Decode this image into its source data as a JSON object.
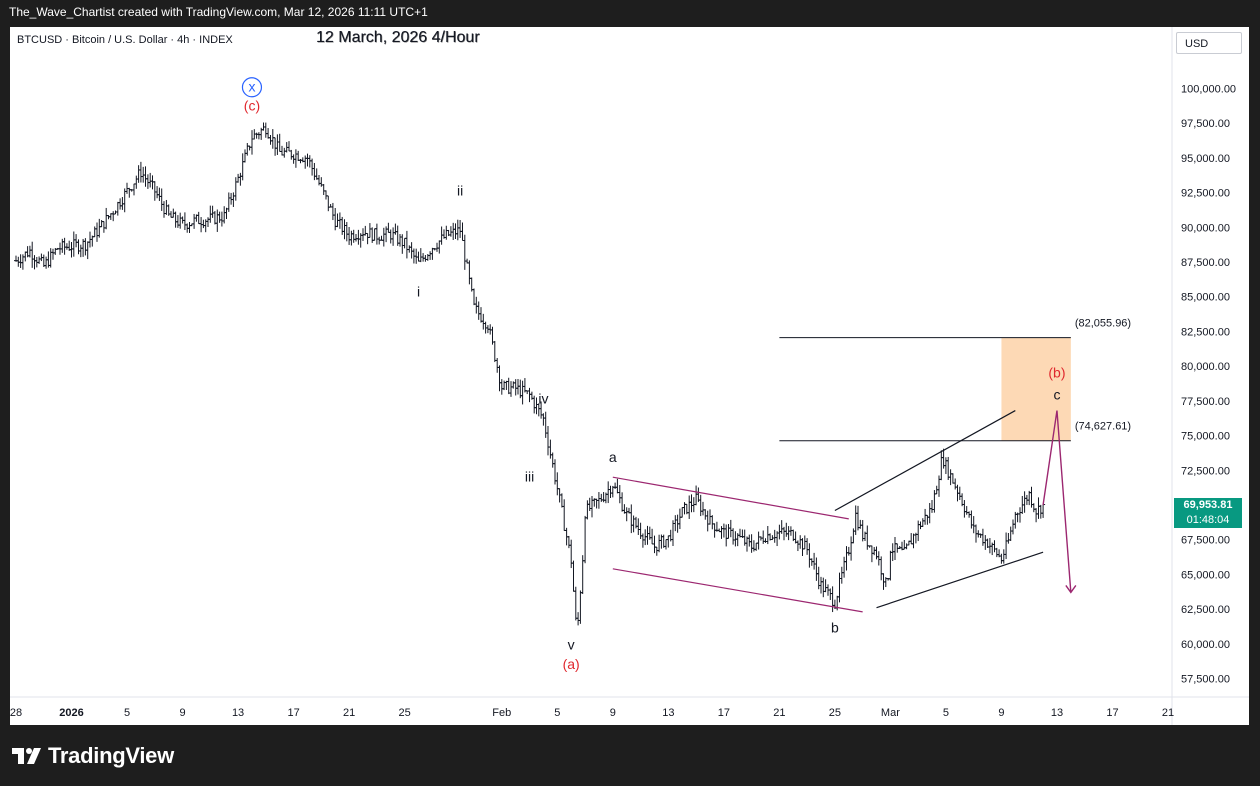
{
  "header": {
    "attribution": "The_Wave_Chartist created with TradingView.com, Mar 12, 2026 11:11 UTC+1"
  },
  "chart_header": {
    "symbol_line": "BTCUSD · Bitcoin / U.S. Dollar · 4h · INDEX",
    "date_title": "12 March, 2026 4/Hour"
  },
  "currency_label": "USD",
  "price_badge": {
    "price": "69,953.81",
    "countdown": "01:48:04",
    "color": "#089981"
  },
  "footer": {
    "brand": "TradingView"
  },
  "chart_data": {
    "type": "candlestick",
    "x_axis": {
      "ticks": [
        {
          "label": "28",
          "date": "2025-12-28"
        },
        {
          "label": "2026",
          "date": "2026-01-01",
          "bold": true
        },
        {
          "label": "5",
          "date": "2026-01-05"
        },
        {
          "label": "9",
          "date": "2026-01-09"
        },
        {
          "label": "13",
          "date": "2026-01-13"
        },
        {
          "label": "17",
          "date": "2026-01-17"
        },
        {
          "label": "21",
          "date": "2026-01-21"
        },
        {
          "label": "25",
          "date": "2026-01-25"
        },
        {
          "label": "Feb",
          "date": "2026-02-01"
        },
        {
          "label": "5",
          "date": "2026-02-05"
        },
        {
          "label": "9",
          "date": "2026-02-09"
        },
        {
          "label": "13",
          "date": "2026-02-13"
        },
        {
          "label": "17",
          "date": "2026-02-17"
        },
        {
          "label": "21",
          "date": "2026-02-21"
        },
        {
          "label": "25",
          "date": "2026-02-25"
        },
        {
          "label": "Mar",
          "date": "2026-03-01"
        },
        {
          "label": "5",
          "date": "2026-03-05"
        },
        {
          "label": "9",
          "date": "2026-03-09"
        },
        {
          "label": "13",
          "date": "2026-03-13"
        },
        {
          "label": "17",
          "date": "2026-03-17"
        },
        {
          "label": "21",
          "date": "2026-03-21"
        }
      ]
    },
    "y_axis": {
      "range": [
        55500,
        104000
      ],
      "ticks": [
        "57,500.00",
        "60,000.00",
        "62,500.00",
        "65,000.00",
        "67,500.00",
        "70,000.00",
        "72,500.00",
        "75,000.00",
        "77,500.00",
        "80,000.00",
        "82,500.00",
        "85,000.00",
        "87,500.00",
        "90,000.00",
        "92,500.00",
        "95,000.00",
        "97,500.00",
        "100,000.00"
      ]
    },
    "price_path": [
      [
        "2025-12-28",
        87600
      ],
      [
        "2025-12-29",
        88300
      ],
      [
        "2025-12-30",
        87200
      ],
      [
        "2025-12-31",
        88500
      ],
      [
        "2026-01-02",
        88800
      ],
      [
        "2026-01-03",
        89900
      ],
      [
        "2026-01-04",
        91200
      ],
      [
        "2026-01-05",
        92600
      ],
      [
        "2026-01-06",
        94000
      ],
      [
        "2026-01-07",
        92600
      ],
      [
        "2026-01-08",
        90800
      ],
      [
        "2026-01-09",
        90200
      ],
      [
        "2026-01-10",
        90500
      ],
      [
        "2026-01-11",
        90600
      ],
      [
        "2026-01-12",
        90800
      ],
      [
        "2026-01-13",
        93500
      ],
      [
        "2026-01-14",
        96500
      ],
      [
        "2026-01-15",
        97200
      ],
      [
        "2026-01-16",
        95400
      ],
      [
        "2026-01-17",
        95300
      ],
      [
        "2026-01-18",
        95000
      ],
      [
        "2026-01-19",
        92800
      ],
      [
        "2026-01-20",
        90500
      ],
      [
        "2026-01-21",
        89400
      ],
      [
        "2026-01-22",
        89700
      ],
      [
        "2026-01-23",
        89400
      ],
      [
        "2026-01-24",
        89500
      ],
      [
        "2026-01-25",
        88800
      ],
      [
        "2026-01-26",
        87400
      ],
      [
        "2026-01-27",
        88600
      ],
      [
        "2026-01-28",
        89400
      ],
      [
        "2026-01-29",
        89800
      ],
      [
        "2026-01-30",
        84200
      ],
      [
        "2026-01-31",
        83000
      ],
      [
        "2026-02-01",
        78500
      ],
      [
        "2026-02-02",
        78400
      ],
      [
        "2026-02-03",
        77900
      ],
      [
        "2026-02-04",
        76200
      ],
      [
        "2026-02-05",
        71200
      ],
      [
        "2026-02-06",
        66000
      ],
      [
        "2026-02-06T10:00",
        60500
      ],
      [
        "2026-02-06T20:00",
        66200
      ],
      [
        "2026-02-07",
        69500
      ],
      [
        "2026-02-08",
        70300
      ],
      [
        "2026-02-09",
        71500
      ],
      [
        "2026-02-10",
        69300
      ],
      [
        "2026-02-11",
        68100
      ],
      [
        "2026-02-12",
        67000
      ],
      [
        "2026-02-13",
        67600
      ],
      [
        "2026-02-14",
        69500
      ],
      [
        "2026-02-15",
        70400
      ],
      [
        "2026-02-16",
        68800
      ],
      [
        "2026-02-17",
        68000
      ],
      [
        "2026-02-18",
        67700
      ],
      [
        "2026-02-19",
        67000
      ],
      [
        "2026-02-20",
        67800
      ],
      [
        "2026-02-21",
        68000
      ],
      [
        "2026-02-22",
        67900
      ],
      [
        "2026-02-23",
        66800
      ],
      [
        "2026-02-24",
        64200
      ],
      [
        "2026-02-25",
        63000
      ],
      [
        "2026-02-26",
        66800
      ],
      [
        "2026-02-26T12:00",
        69300
      ],
      [
        "2026-02-27",
        67800
      ],
      [
        "2026-02-28",
        66500
      ],
      [
        "2026-02-28T18:00",
        64000
      ],
      [
        "2026-03-01",
        66900
      ],
      [
        "2026-03-02",
        66500
      ],
      [
        "2026-03-03",
        68400
      ],
      [
        "2026-03-04",
        69800
      ],
      [
        "2026-03-04T18:00",
        73500
      ],
      [
        "2026-03-05",
        72800
      ],
      [
        "2026-03-06",
        70700
      ],
      [
        "2026-03-07",
        68200
      ],
      [
        "2026-03-08",
        67300
      ],
      [
        "2026-03-09",
        66100
      ],
      [
        "2026-03-09T12:00",
        67400
      ],
      [
        "2026-03-10",
        69300
      ],
      [
        "2026-03-11",
        70800
      ],
      [
        "2026-03-11T12:00",
        69600
      ],
      [
        "2026-03-12",
        69953.81
      ]
    ],
    "channel_lines": [
      {
        "from": [
          "2026-02-09",
          72000
        ],
        "to": [
          "2026-02-26",
          69000
        ],
        "color": "#9c2770"
      },
      {
        "from": [
          "2026-02-09",
          65400
        ],
        "to": [
          "2026-02-27",
          62300
        ],
        "color": "#9c2770"
      },
      {
        "from": [
          "2026-02-25",
          69600
        ],
        "to": [
          "2026-03-10",
          76800
        ],
        "color": "#131722"
      },
      {
        "from": [
          "2026-02-28",
          62600
        ],
        "to": [
          "2026-03-12",
          66600
        ],
        "color": "#131722"
      }
    ],
    "levels": [
      {
        "label": "(82,055.96)",
        "value": 82055.96,
        "from": "2026-02-21",
        "to": "2026-03-14"
      },
      {
        "label": "(74,627.61)",
        "value": 74627.61,
        "from": "2026-02-21",
        "to": "2026-03-14"
      }
    ],
    "target_zone": {
      "from": "2026-03-09",
      "to": "2026-03-14",
      "y_low": 74627.61,
      "y_high": 82055.96,
      "color": "#fdd9b5"
    },
    "projection": {
      "color": "#9c2770",
      "points": [
        [
          "2026-03-12",
          70000
        ],
        [
          "2026-03-13",
          76800
        ],
        [
          "2026-03-14",
          63700
        ]
      ]
    },
    "wave_labels": [
      {
        "text": "x",
        "date": "2026-01-14",
        "y": 99800,
        "circled": true,
        "color": "#2962ff"
      },
      {
        "text": "(c)",
        "date": "2026-01-14",
        "y": 98400,
        "color": "#e0282e"
      },
      {
        "text": "ii",
        "date": "2026-01-29",
        "y": 92300,
        "color": "#131722"
      },
      {
        "text": "i",
        "date": "2026-01-26",
        "y": 85000,
        "color": "#131722"
      },
      {
        "text": "iv",
        "date": "2026-02-04",
        "y": 77300,
        "color": "#131722"
      },
      {
        "text": "iii",
        "date": "2026-02-03",
        "y": 71700,
        "color": "#131722"
      },
      {
        "text": "v",
        "date": "2026-02-06",
        "y": 59600,
        "color": "#131722"
      },
      {
        "text": "(a)",
        "date": "2026-02-06",
        "y": 58200,
        "color": "#e0282e"
      },
      {
        "text": "a",
        "date": "2026-02-09",
        "y": 73100,
        "color": "#131722"
      },
      {
        "text": "b",
        "date": "2026-02-25",
        "y": 60800,
        "color": "#131722"
      },
      {
        "text": "(b)",
        "date": "2026-03-13",
        "y": 79200,
        "color": "#e0282e"
      },
      {
        "text": "c",
        "date": "2026-03-13",
        "y": 77600,
        "color": "#131722"
      }
    ]
  }
}
